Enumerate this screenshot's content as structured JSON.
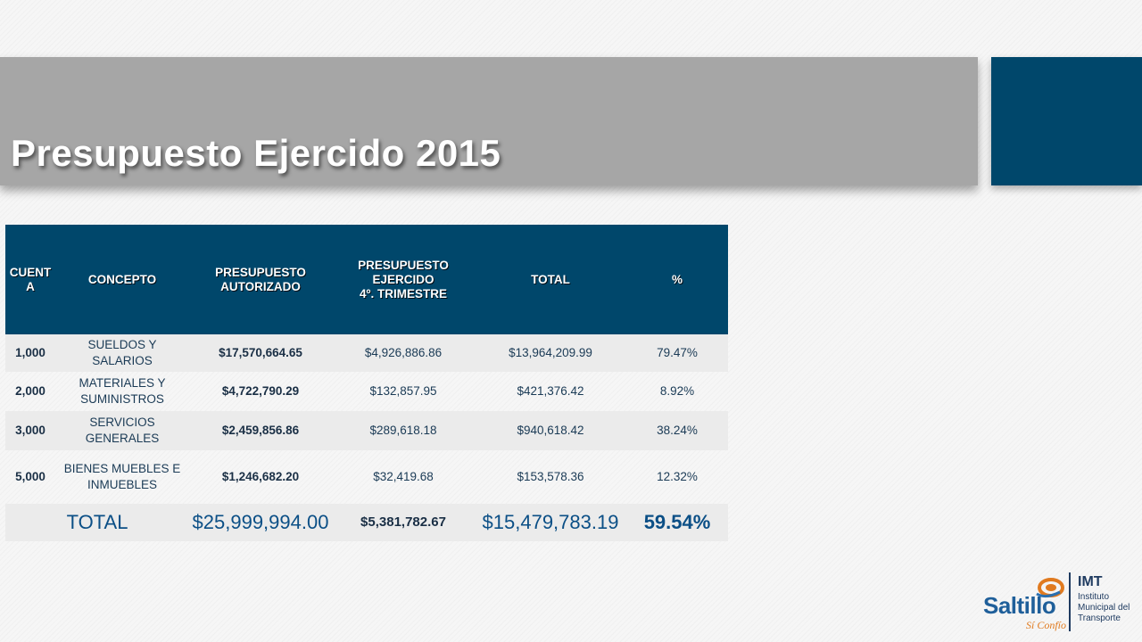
{
  "slide": {
    "title": "Presupuesto Ejercido 2015"
  },
  "table": {
    "headers": {
      "cuenta": "CUENT A",
      "concepto": "CONCEPTO",
      "autorizado": "PRESUPUESTO AUTORIZADO",
      "ejercido_line1": "PRESUPUESTO",
      "ejercido_line2": "EJERCIDO",
      "ejercido_line3": "4º. TRIMESTRE",
      "total": "TOTAL",
      "pct": "%"
    },
    "rows": [
      {
        "cuenta": "1,000",
        "concepto": "SUELDOS Y SALARIOS",
        "autorizado": "$17,570,664.65",
        "ejercido": "$4,926,886.86",
        "total": "$13,964,209.99",
        "pct": "79.47%"
      },
      {
        "cuenta": "2,000",
        "concepto": "MATERIALES Y SUMINISTROS",
        "autorizado": "$4,722,790.29",
        "ejercido": "$132,857.95",
        "total": "$421,376.42",
        "pct": "8.92%"
      },
      {
        "cuenta": "3,000",
        "concepto": "SERVICIOS GENERALES",
        "autorizado": "$2,459,856.86",
        "ejercido": "$289,618.18",
        "total": "$940,618.42",
        "pct": "38.24%"
      },
      {
        "cuenta": "5,000",
        "concepto": "BIENES MUEBLES E INMUEBLES",
        "autorizado": "$1,246,682.20",
        "ejercido": "$32,419.68",
        "total": "$153,578.36",
        "pct": "12.32%"
      }
    ],
    "totals": {
      "label": "TOTAL",
      "autorizado": "$25,999,994.00",
      "ejercido": "$5,381,782.67",
      "total": "$15,479,783.19",
      "pct": "59.54%"
    }
  },
  "logo": {
    "brand": "Saltillo",
    "tagline": "Sí Confío",
    "org_short": "IMT",
    "org_line1": "Instituto",
    "org_line2": "Municipal del",
    "org_line3": "Transporte"
  },
  "colors": {
    "title_band": "#a6a6a6",
    "accent": "#00476b",
    "header_bg": "#00476b",
    "row_stripe": "#ebebeb",
    "total_text": "#0b4f86"
  }
}
